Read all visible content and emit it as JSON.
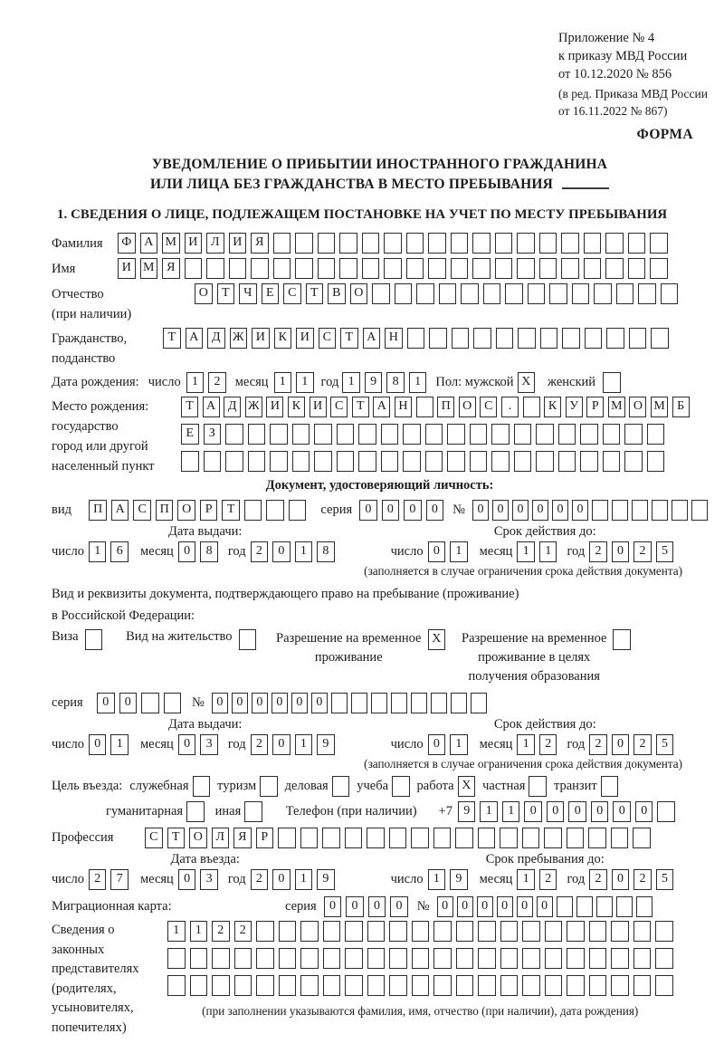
{
  "header": {
    "lines_a": [
      "Приложение № 4",
      "к приказу МВД России",
      "от 10.12.2020 № 856"
    ],
    "lines_b": [
      "(в ред. Приказа МВД России",
      "от 16.11.2022 № 867)"
    ],
    "forma": "ФОРМА"
  },
  "title": {
    "line1": "УВЕДОМЛЕНИЕ О ПРИБЫТИИ ИНОСТРАННОГО ГРАЖДАНИНА",
    "line2": "ИЛИ ЛИЦА БЕЗ ГРАЖДАНСТВА В МЕСТО ПРЕБЫВАНИЯ"
  },
  "section1_heading": "1. СВЕДЕНИЯ О ЛИЦЕ, ПОДЛЕЖАЩЕМ ПОСТАНОВКЕ НА УЧЕТ ПО МЕСТУ ПРЕБЫВАНИЯ",
  "labels": {
    "surname": "Фамилия",
    "name": "Имя",
    "patronymic1": "Отчество",
    "patronymic2": "(при наличии)",
    "citizenship1": "Гражданство,",
    "citizenship2": "подданство",
    "birth_date": "Дата рождения:",
    "day": "число",
    "month": "месяц",
    "year": "год",
    "sex_male": "Пол: мужской",
    "female": "женский",
    "birth_place": "Место рождения:",
    "bp2": "государство",
    "bp3": "город или другой",
    "bp4": "населенный пункт",
    "identity_doc": "Документ, удостоверяющий личность:",
    "doc_kind": "вид",
    "series": "серия",
    "number": "№",
    "issue_date": "Дата выдачи:",
    "valid_until": "Срок действия до:",
    "validity_note": "(заполняется в случае ограничения срока действия документа)",
    "right_doc1": "Вид и реквизиты документа, подтверждающего право на пребывание (проживание)",
    "right_doc2": "в Российской Федерации:",
    "visa": "Виза",
    "residence_permit": "Вид на жительство",
    "temp_residence1": "Разрешение на временное",
    "temp_residence2": "проживание",
    "temp_edu1": "Разрешение на временное",
    "temp_edu2": "проживание в целях",
    "temp_edu3": "получения образования",
    "purpose": "Цель въезда:",
    "official": "служебная",
    "tourism": "туризм",
    "business": "деловая",
    "study": "учеба",
    "work": "работа",
    "private": "частная",
    "transit": "транзит",
    "humanitarian": "гуманитарная",
    "other": "иная",
    "phone": "Телефон (при наличии)",
    "phone_prefix": "+7",
    "profession": "Профессия",
    "entry_date": "Дата въезда:",
    "stay_until": "Срок пребывания до:",
    "migration_card": "Миграционная карта:",
    "reps1": "Сведения о",
    "reps2": "законных",
    "reps3": "представителях",
    "reps4": "(родителях,",
    "reps5": "усыновителях,",
    "reps6": "попечителях)",
    "reps_note": "(при заполнении указываются фамилия, имя, отчество (при наличии), дата рождения)"
  },
  "cells": {
    "surname": {
      "v": "ФАМИЛИЯ",
      "n": 25
    },
    "name": {
      "v": "ИМЯ",
      "n": 25
    },
    "patronymic": {
      "v": "ОТЧЕСТВО",
      "n": 22
    },
    "citizenship": {
      "v": "ТАДЖИКИСТАН",
      "n": 23
    },
    "birth_day": {
      "v": "12",
      "n": 2
    },
    "birth_month": {
      "v": "11",
      "n": 2
    },
    "birth_year": {
      "v": "1981",
      "n": 4
    },
    "sex_male": {
      "v": "X",
      "n": 1
    },
    "sex_female": {
      "v": "",
      "n": 1
    },
    "birth_place1": {
      "v": "ТАДЖИКИСТАН ПОС. КУРМОМБ",
      "n": 24
    },
    "birth_place2": {
      "v": "ЕЗ",
      "n": 22
    },
    "birth_place3": {
      "v": "",
      "n": 22
    },
    "doc_kind": {
      "v": "ПАСПОРТ",
      "n": 10
    },
    "doc_series": {
      "v": "0000",
      "n": 4
    },
    "doc_number": {
      "v": "000000",
      "n": 12
    },
    "doc_issue_day": {
      "v": "16",
      "n": 2
    },
    "doc_issue_month": {
      "v": "08",
      "n": 2
    },
    "doc_issue_year": {
      "v": "2018",
      "n": 4
    },
    "doc_valid_day": {
      "v": "01",
      "n": 2
    },
    "doc_valid_month": {
      "v": "11",
      "n": 2
    },
    "doc_valid_year": {
      "v": "2025",
      "n": 4
    },
    "cb_visa": {
      "v": "",
      "n": 1
    },
    "cb_residence": {
      "v": "",
      "n": 1
    },
    "cb_temp": {
      "v": "X",
      "n": 1
    },
    "cb_temp_edu": {
      "v": "",
      "n": 1
    },
    "permit_series": {
      "v": "00",
      "n": 4
    },
    "permit_number": {
      "v": "000000",
      "n": 14
    },
    "permit_issue_day": {
      "v": "01",
      "n": 2
    },
    "permit_issue_month": {
      "v": "03",
      "n": 2
    },
    "permit_issue_year": {
      "v": "2019",
      "n": 4
    },
    "permit_valid_day": {
      "v": "01",
      "n": 2
    },
    "permit_valid_month": {
      "v": "12",
      "n": 2
    },
    "permit_valid_year": {
      "v": "2025",
      "n": 4
    },
    "cb_official": {
      "v": "",
      "n": 1
    },
    "cb_tourism": {
      "v": "",
      "n": 1
    },
    "cb_business": {
      "v": "",
      "n": 1
    },
    "cb_study": {
      "v": "",
      "n": 1
    },
    "cb_work": {
      "v": "X",
      "n": 1
    },
    "cb_private": {
      "v": "",
      "n": 1
    },
    "cb_transit": {
      "v": "",
      "n": 1
    },
    "cb_humanitarian": {
      "v": "",
      "n": 1
    },
    "cb_other": {
      "v": "",
      "n": 1
    },
    "phone": {
      "v": "911000000",
      "n": 10
    },
    "profession": {
      "v": "СТОЛЯР",
      "n": 23
    },
    "entry_day": {
      "v": "27",
      "n": 2
    },
    "entry_month": {
      "v": "03",
      "n": 2
    },
    "entry_year": {
      "v": "2019",
      "n": 4
    },
    "stay_day": {
      "v": "19",
      "n": 2
    },
    "stay_month": {
      "v": "12",
      "n": 2
    },
    "stay_year": {
      "v": "2025",
      "n": 4
    },
    "mig_series": {
      "v": "0000",
      "n": 4
    },
    "mig_number": {
      "v": "000000",
      "n": 11
    },
    "reps_row1": {
      "v": "1122",
      "n": 23
    },
    "reps_row2": {
      "v": "",
      "n": 23
    },
    "reps_row3": {
      "v": "",
      "n": 23
    }
  }
}
